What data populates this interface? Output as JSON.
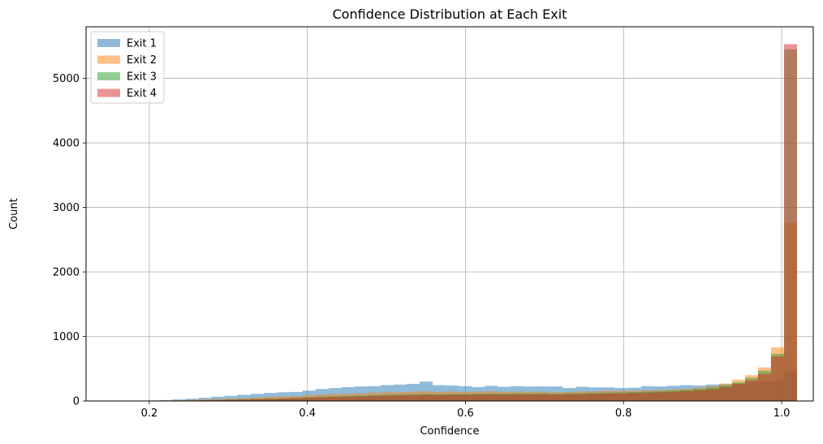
{
  "chart_data": {
    "type": "histogram",
    "title": "Confidence Distribution at Each Exit",
    "xlabel": "Confidence",
    "ylabel": "Count",
    "xlim": [
      0.12,
      1.04
    ],
    "ylim": [
      0,
      5800
    ],
    "xticks": [
      0.2,
      0.4,
      0.6,
      0.8,
      1.0
    ],
    "xtick_labels": [
      "0.2",
      "0.4",
      "0.6",
      "0.8",
      "1.0"
    ],
    "yticks": [
      0,
      1000,
      2000,
      3000,
      4000,
      5000
    ],
    "ytick_labels": [
      "0",
      "1000",
      "2000",
      "3000",
      "4000",
      "5000"
    ],
    "grid": true,
    "legend_position": "upper-left",
    "bin_start": 0.18,
    "bin_width": 0.01646,
    "series": [
      {
        "name": "Exit 1",
        "color": "#1f77b4",
        "values": [
          5,
          8,
          15,
          25,
          35,
          50,
          65,
          80,
          95,
          110,
          125,
          135,
          140,
          160,
          185,
          200,
          215,
          225,
          230,
          245,
          255,
          265,
          300,
          245,
          240,
          230,
          215,
          235,
          220,
          230,
          225,
          225,
          225,
          200,
          220,
          210,
          210,
          200,
          205,
          230,
          225,
          235,
          245,
          240,
          255,
          260,
          270,
          285,
          300,
          320,
          460
        ]
      },
      {
        "name": "Exit 2",
        "color": "#ff7f0e",
        "values": [
          2,
          4,
          8,
          12,
          18,
          25,
          30,
          38,
          45,
          55,
          65,
          70,
          75,
          90,
          100,
          110,
          115,
          120,
          130,
          135,
          140,
          145,
          150,
          140,
          145,
          140,
          145,
          150,
          140,
          145,
          140,
          145,
          135,
          140,
          145,
          150,
          160,
          155,
          160,
          165,
          170,
          180,
          190,
          205,
          230,
          270,
          330,
          400,
          520,
          830,
          2760
        ]
      },
      {
        "name": "Exit 3",
        "color": "#2ca02c",
        "values": [
          1,
          2,
          4,
          6,
          10,
          14,
          18,
          22,
          28,
          32,
          38,
          42,
          48,
          58,
          65,
          72,
          78,
          82,
          88,
          95,
          98,
          102,
          108,
          105,
          110,
          108,
          112,
          115,
          112,
          118,
          115,
          118,
          112,
          118,
          120,
          125,
          130,
          132,
          138,
          145,
          150,
          158,
          168,
          185,
          205,
          240,
          290,
          360,
          470,
          730,
          5450
        ]
      },
      {
        "name": "Exit 4",
        "color": "#d62728",
        "values": [
          1,
          2,
          3,
          5,
          8,
          11,
          15,
          19,
          23,
          28,
          33,
          38,
          43,
          50,
          56,
          62,
          68,
          72,
          76,
          82,
          86,
          90,
          94,
          92,
          96,
          95,
          98,
          100,
          98,
          102,
          100,
          104,
          98,
          104,
          106,
          110,
          114,
          118,
          122,
          128,
          134,
          140,
          150,
          162,
          180,
          212,
          260,
          320,
          420,
          690,
          5530
        ]
      }
    ]
  }
}
